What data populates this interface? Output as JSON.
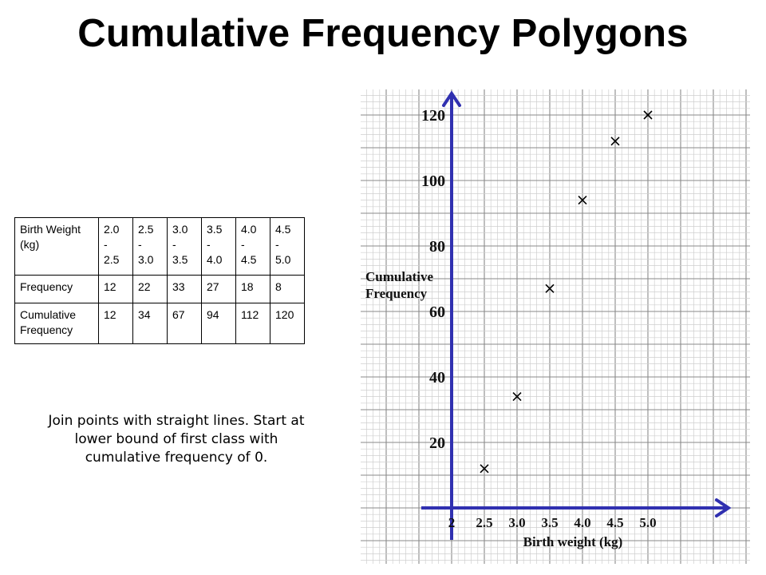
{
  "title": "Cumulative Frequency Polygons",
  "table": {
    "row_headers": [
      "Birth Weight (kg)",
      "Frequency",
      "Cumulative Frequency"
    ],
    "classes": [
      [
        "2.0",
        "-",
        "2.5"
      ],
      [
        "2.5",
        "-",
        "3.0"
      ],
      [
        "3.0",
        "-",
        "3.5"
      ],
      [
        "3.5",
        "-",
        "4.0"
      ],
      [
        "4.0",
        "-",
        "4.5"
      ],
      [
        "4.5",
        "-",
        "5.0"
      ]
    ],
    "frequency": [
      "12",
      "22",
      "33",
      "27",
      "18",
      "8"
    ],
    "cumulative": [
      "12",
      "34",
      "67",
      "94",
      "112",
      "120"
    ]
  },
  "instructions": "Join points with straight lines. Start at lower bound of first class with cumulative frequency of 0.",
  "chart_data": {
    "type": "scatter",
    "title": "",
    "xlabel": "Birth weight (kg)",
    "ylabel": "Cumulative Frequency",
    "x_tick_labels": [
      "2",
      "2.5",
      "3.0",
      "3.5",
      "4.0",
      "4.5",
      "5.0"
    ],
    "y_tick_labels": [
      "20",
      "40",
      "60",
      "80",
      "100",
      "120"
    ],
    "series": [
      {
        "x": [
          2.5,
          3.0,
          3.5,
          4.0,
          4.5,
          5.0
        ],
        "y": [
          12,
          34,
          67,
          94,
          112,
          120
        ]
      }
    ],
    "marker": "x",
    "grid": true,
    "colors": {
      "axis": "#3030b0",
      "grid_minor": "#cfcfcf",
      "grid_major": "#8a8a8a",
      "marker": "#000000"
    }
  }
}
